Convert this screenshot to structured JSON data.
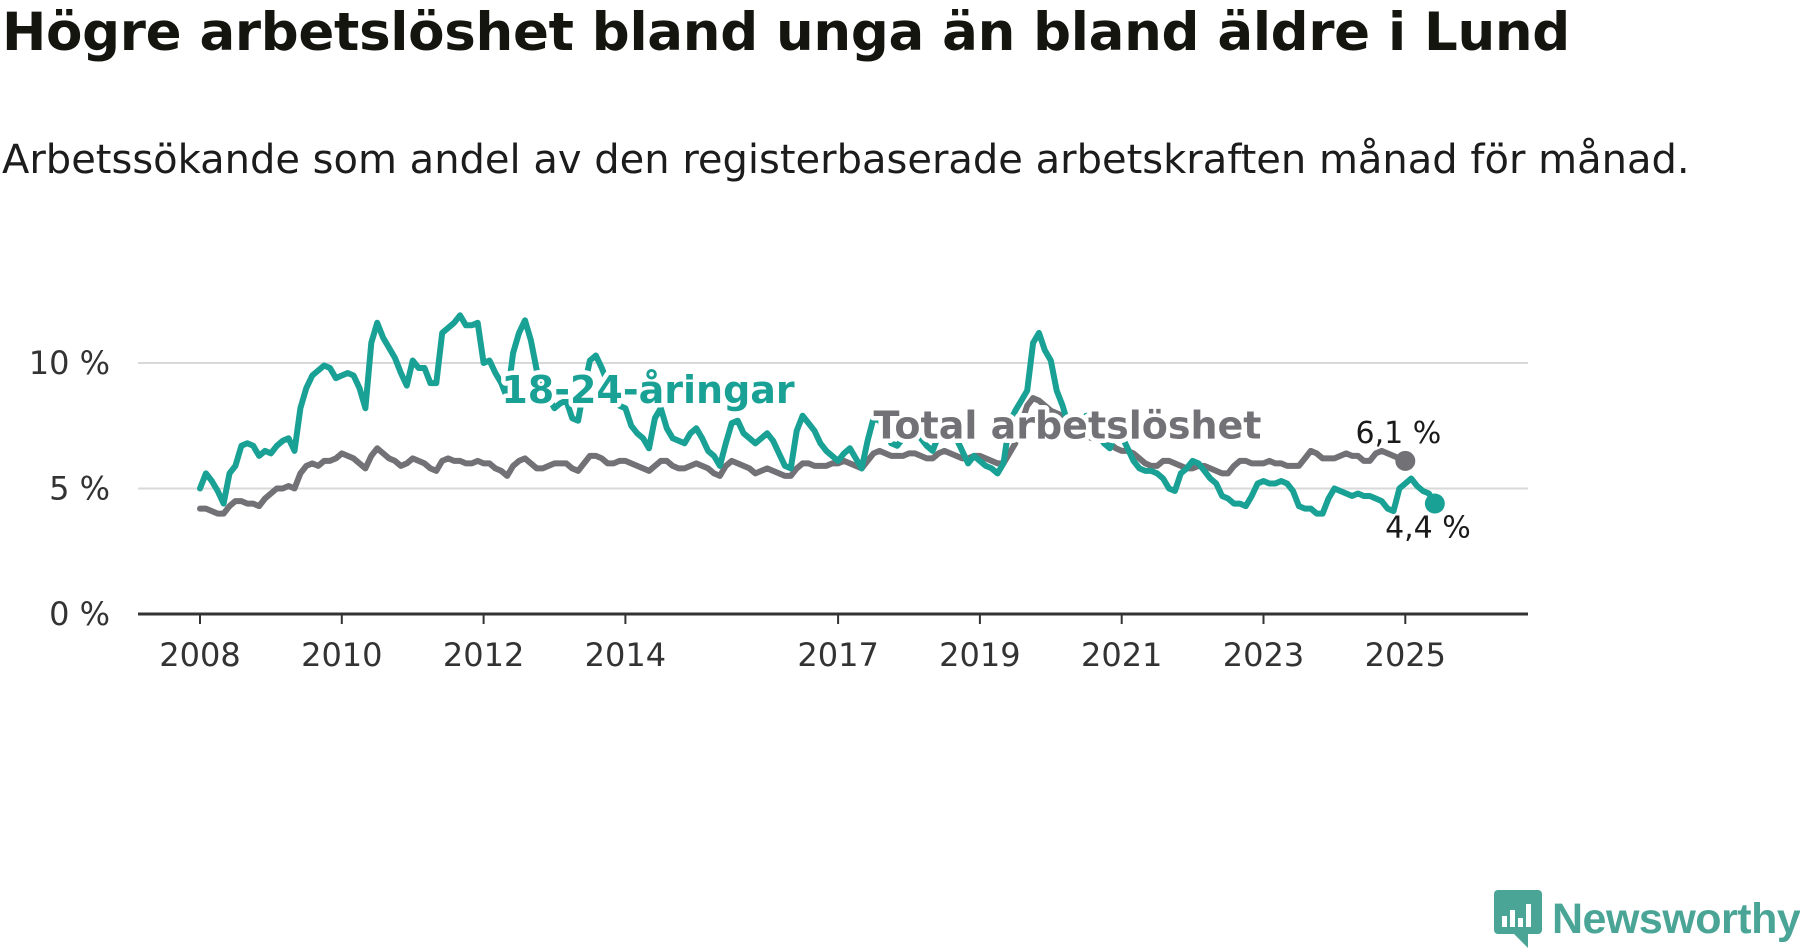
{
  "title": "Högre arbetslöshet bland unga än bland äldre i Lund",
  "subtitle": "Arbetssökande som andel av den registerbaserade arbetskraften månad för månad.",
  "brand": {
    "name": "Newsworthy",
    "color": "#4aa596",
    "icon": "newsworthy-logo-icon"
  },
  "chart_data": {
    "type": "line",
    "title": "Högre arbetslöshet bland unga än bland äldre i Lund",
    "xlabel": "",
    "ylabel": "",
    "x_start": 2008.0,
    "x_step": 0.0833333,
    "xlim": [
      2008.0,
      2026.7
    ],
    "ylim": [
      0,
      12
    ],
    "y_ticks": [
      {
        "value": 0,
        "label": "0 %"
      },
      {
        "value": 5,
        "label": "5 %"
      },
      {
        "value": 10,
        "label": "10 %"
      }
    ],
    "x_ticks": [
      {
        "value": 2008,
        "label": "2008"
      },
      {
        "value": 2010,
        "label": "2010"
      },
      {
        "value": 2012,
        "label": "2012"
      },
      {
        "value": 2014,
        "label": "2014"
      },
      {
        "value": 2017,
        "label": "2017"
      },
      {
        "value": 2019,
        "label": "2019"
      },
      {
        "value": 2021,
        "label": "2021"
      },
      {
        "value": 2023,
        "label": "2023"
      },
      {
        "value": 2025,
        "label": "2025"
      }
    ],
    "series": [
      {
        "name": "Total arbetslöshet",
        "color": "#727176",
        "label": "Total arbetslöshet",
        "label_x": 2017.5,
        "label_y": 7.0,
        "end_label": "6,1 %",
        "values": [
          4.2,
          4.2,
          4.1,
          4.0,
          4.0,
          4.3,
          4.5,
          4.5,
          4.4,
          4.4,
          4.3,
          4.6,
          4.8,
          5.0,
          5.0,
          5.1,
          5.0,
          5.6,
          5.9,
          6.0,
          5.9,
          6.1,
          6.1,
          6.2,
          6.4,
          6.3,
          6.2,
          6.0,
          5.8,
          6.3,
          6.6,
          6.4,
          6.2,
          6.1,
          5.9,
          6.0,
          6.2,
          6.1,
          6.0,
          5.8,
          5.7,
          6.1,
          6.2,
          6.1,
          6.1,
          6.0,
          6.0,
          6.1,
          6.0,
          6.0,
          5.8,
          5.7,
          5.5,
          5.9,
          6.1,
          6.2,
          6.0,
          5.8,
          5.8,
          5.9,
          6.0,
          6.0,
          6.0,
          5.8,
          5.7,
          6.0,
          6.3,
          6.3,
          6.2,
          6.0,
          6.0,
          6.1,
          6.1,
          6.0,
          5.9,
          5.8,
          5.7,
          5.9,
          6.1,
          6.1,
          5.9,
          5.8,
          5.8,
          5.9,
          6.0,
          5.9,
          5.8,
          5.6,
          5.5,
          5.9,
          6.1,
          6.0,
          5.9,
          5.8,
          5.6,
          5.7,
          5.8,
          5.7,
          5.6,
          5.5,
          5.5,
          5.8,
          6.0,
          6.0,
          5.9,
          5.9,
          5.9,
          6.0,
          6.0,
          6.1,
          6.0,
          5.9,
          5.8,
          6.1,
          6.4,
          6.5,
          6.4,
          6.3,
          6.3,
          6.3,
          6.4,
          6.4,
          6.3,
          6.2,
          6.2,
          6.4,
          6.5,
          6.4,
          6.3,
          6.2,
          6.2,
          6.3,
          6.3,
          6.2,
          6.1,
          6.0,
          6.0,
          6.4,
          6.8,
          7.6,
          8.3,
          8.6,
          8.5,
          8.3,
          8.1,
          8.0,
          7.9,
          7.6,
          7.4,
          7.3,
          7.1,
          7.0,
          7.1,
          7.0,
          6.8,
          6.6,
          6.5,
          6.5,
          6.4,
          6.2,
          6.0,
          5.9,
          5.9,
          6.1,
          6.1,
          6.0,
          5.9,
          5.8,
          5.8,
          5.9,
          5.9,
          5.8,
          5.7,
          5.6,
          5.6,
          5.9,
          6.1,
          6.1,
          6.0,
          6.0,
          6.0,
          6.1,
          6.0,
          6.0,
          5.9,
          5.9,
          5.9,
          6.2,
          6.5,
          6.4,
          6.2,
          6.2,
          6.2,
          6.3,
          6.4,
          6.3,
          6.3,
          6.1,
          6.1,
          6.4,
          6.5,
          6.4,
          6.3,
          6.2,
          6.1
        ]
      },
      {
        "name": "18-24-åringar",
        "color": "#1aa195",
        "label": "18-24-åringar",
        "label_x": 2012.25,
        "label_y": 8.4,
        "end_label": "4,4 %",
        "values": [
          5.0,
          5.6,
          5.3,
          4.9,
          4.4,
          5.6,
          5.9,
          6.7,
          6.8,
          6.7,
          6.3,
          6.5,
          6.4,
          6.7,
          6.9,
          7.0,
          6.5,
          8.2,
          9.0,
          9.5,
          9.7,
          9.9,
          9.8,
          9.4,
          9.5,
          9.6,
          9.5,
          9.0,
          8.2,
          10.8,
          11.6,
          11.0,
          10.6,
          10.2,
          9.6,
          9.1,
          10.1,
          9.8,
          9.8,
          9.2,
          9.2,
          11.2,
          11.4,
          11.6,
          11.9,
          11.5,
          11.5,
          11.6,
          10.0,
          10.1,
          9.6,
          9.2,
          8.6,
          10.4,
          11.2,
          11.7,
          10.9,
          9.7,
          9.1,
          8.6,
          8.2,
          8.4,
          8.5,
          7.8,
          7.7,
          9.0,
          10.1,
          10.3,
          9.8,
          9.2,
          8.6,
          8.3,
          8.2,
          7.5,
          7.2,
          7.0,
          6.6,
          7.8,
          8.2,
          7.4,
          7.0,
          6.9,
          6.8,
          7.2,
          7.4,
          7.0,
          6.5,
          6.3,
          5.9,
          6.8,
          7.6,
          7.7,
          7.2,
          7.0,
          6.8,
          7.0,
          7.2,
          6.9,
          6.4,
          5.9,
          5.8,
          7.3,
          7.9,
          7.6,
          7.3,
          6.8,
          6.5,
          6.3,
          6.1,
          6.4,
          6.6,
          6.2,
          5.8,
          6.9,
          7.8,
          7.7,
          7.3,
          6.8,
          6.7,
          7.0,
          7.5,
          7.4,
          7.0,
          6.7,
          6.5,
          7.1,
          7.6,
          7.4,
          7.0,
          6.5,
          6.0,
          6.3,
          6.1,
          5.9,
          5.8,
          5.6,
          6.0,
          7.6,
          8.1,
          8.5,
          8.9,
          10.8,
          11.2,
          10.5,
          10.1,
          8.9,
          8.3,
          7.5,
          7.0,
          7.6,
          7.9,
          7.5,
          7.2,
          6.8,
          6.6,
          7.2,
          7.1,
          6.6,
          6.1,
          5.8,
          5.7,
          5.7,
          5.6,
          5.4,
          5.0,
          4.9,
          5.6,
          5.8,
          6.1,
          6.0,
          5.7,
          5.4,
          5.2,
          4.7,
          4.6,
          4.4,
          4.4,
          4.3,
          4.7,
          5.2,
          5.3,
          5.2,
          5.2,
          5.3,
          5.2,
          4.9,
          4.3,
          4.2,
          4.2,
          4.0,
          4.0,
          4.6,
          5.0,
          4.9,
          4.8,
          4.7,
          4.8,
          4.7,
          4.7,
          4.6,
          4.5,
          4.2,
          4.1,
          5.0,
          5.2,
          5.4,
          5.1,
          4.9,
          4.8,
          4.4
        ]
      }
    ]
  }
}
